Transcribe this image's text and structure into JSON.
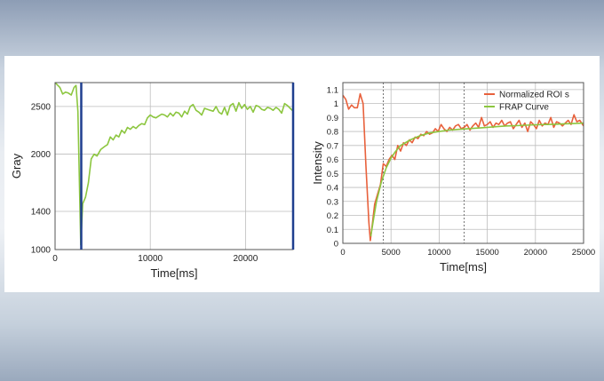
{
  "chart_data": [
    {
      "type": "line",
      "title": "",
      "xlabel": "Time[ms]",
      "ylabel": "Gray",
      "xlim": [
        0,
        25000
      ],
      "ylim": [
        1000,
        2750
      ],
      "xticks": [
        0,
        10000,
        20000
      ],
      "yticks": [
        1000,
        1400,
        2000,
        2500
      ],
      "grid": true,
      "series": [
        {
          "color": "#8cc63f",
          "x": [
            0,
            500,
            800,
            1100,
            1400,
            1700,
            2000,
            2200,
            2400,
            2550,
            2700,
            2900,
            3200,
            3500,
            3800,
            4100,
            4400,
            4800,
            5200,
            5500,
            5800,
            6100,
            6400,
            6700,
            7000,
            7300,
            7600,
            7900,
            8200,
            8500,
            8800,
            9100,
            9400,
            9700,
            10000,
            10300,
            10600,
            10900,
            11200,
            11500,
            11800,
            12100,
            12400,
            12700,
            13000,
            13300,
            13600,
            13900,
            14200,
            14500,
            14800,
            15100,
            15400,
            15700,
            16000,
            16300,
            16600,
            16900,
            17200,
            17500,
            17800,
            18100,
            18400,
            18700,
            19000,
            19300,
            19600,
            19900,
            20200,
            20500,
            20800,
            21100,
            21400,
            21700,
            22000,
            22300,
            22600,
            22900,
            23200,
            23500,
            23800,
            24100,
            24400,
            24700,
            25000
          ],
          "values": [
            2750,
            2700,
            2630,
            2650,
            2640,
            2620,
            2700,
            2720,
            2450,
            1750,
            1050,
            1480,
            1550,
            1700,
            1950,
            2000,
            1980,
            2050,
            2080,
            2100,
            2180,
            2150,
            2200,
            2180,
            2250,
            2220,
            2280,
            2260,
            2290,
            2270,
            2300,
            2320,
            2310,
            2380,
            2410,
            2390,
            2380,
            2400,
            2420,
            2410,
            2390,
            2430,
            2400,
            2440,
            2430,
            2390,
            2450,
            2420,
            2500,
            2520,
            2460,
            2440,
            2410,
            2480,
            2470,
            2460,
            2450,
            2500,
            2440,
            2420,
            2490,
            2410,
            2510,
            2530,
            2450,
            2540,
            2480,
            2520,
            2470,
            2500,
            2440,
            2510,
            2500,
            2470,
            2460,
            2490,
            2480,
            2460,
            2490,
            2470,
            2430,
            2530,
            2510,
            2480,
            2450
          ]
        }
      ]
    },
    {
      "type": "line",
      "title": "",
      "xlabel": "Time[ms]",
      "ylabel": "Intensity",
      "xlim": [
        0,
        25000
      ],
      "ylim": [
        0,
        1.15
      ],
      "xticks": [
        0,
        5000,
        10000,
        15000,
        20000,
        25000
      ],
      "yticks": [
        0,
        0.1,
        0.2,
        0.3,
        0.4,
        0.5,
        0.6,
        0.7,
        0.8,
        0.9,
        1,
        1.1
      ],
      "ytick_labels": [
        "0",
        "0.1",
        "0.2",
        "0.3",
        "0.4",
        "0.5",
        "0.6",
        "0.7",
        "0.8",
        "0.9",
        "1",
        "1.1"
      ],
      "grid": true,
      "reference_lines_x": [
        4200,
        12600
      ],
      "legend": "top-right",
      "series": [
        {
          "name": "Normalized ROI s",
          "color": "#e8613c",
          "x": [
            0,
            300,
            600,
            900,
            1200,
            1500,
            1800,
            2100,
            2400,
            2700,
            2850,
            3000,
            3300,
            3600,
            3900,
            4200,
            4500,
            4800,
            5100,
            5400,
            5700,
            6000,
            6300,
            6600,
            6900,
            7200,
            7500,
            7800,
            8100,
            8400,
            8700,
            9000,
            9300,
            9600,
            9900,
            10200,
            10500,
            10800,
            11100,
            11400,
            11700,
            12000,
            12300,
            12600,
            12900,
            13200,
            13500,
            13800,
            14100,
            14400,
            14700,
            15000,
            15300,
            15600,
            15900,
            16200,
            16500,
            16800,
            17100,
            17400,
            17700,
            18000,
            18300,
            18600,
            18900,
            19200,
            19500,
            19800,
            20100,
            20400,
            20700,
            21000,
            21300,
            21600,
            21900,
            22200,
            22500,
            22800,
            23100,
            23400,
            23700,
            24000,
            24300,
            24600,
            25000
          ],
          "values": [
            1.06,
            1.03,
            0.96,
            0.99,
            0.97,
            0.97,
            1.07,
            1.0,
            0.55,
            0.15,
            0.02,
            0.1,
            0.28,
            0.35,
            0.42,
            0.57,
            0.55,
            0.6,
            0.63,
            0.6,
            0.7,
            0.66,
            0.72,
            0.7,
            0.74,
            0.72,
            0.76,
            0.75,
            0.78,
            0.77,
            0.8,
            0.78,
            0.79,
            0.82,
            0.8,
            0.85,
            0.82,
            0.8,
            0.83,
            0.81,
            0.84,
            0.85,
            0.82,
            0.83,
            0.85,
            0.81,
            0.84,
            0.86,
            0.83,
            0.9,
            0.84,
            0.85,
            0.87,
            0.83,
            0.86,
            0.85,
            0.88,
            0.84,
            0.86,
            0.87,
            0.82,
            0.85,
            0.88,
            0.83,
            0.86,
            0.8,
            0.87,
            0.85,
            0.82,
            0.88,
            0.84,
            0.86,
            0.85,
            0.9,
            0.83,
            0.87,
            0.86,
            0.84,
            0.86,
            0.88,
            0.85,
            0.92,
            0.87,
            0.88,
            0.84
          ]
        },
        {
          "name": "FRAP Curve",
          "color": "#8cc63f",
          "x": [
            2900,
            3200,
            3500,
            4000,
            4500,
            5000,
            5500,
            6000,
            7000,
            8000,
            9000,
            10000,
            11000,
            12000,
            13000,
            14000,
            15000,
            16000,
            17000,
            18000,
            19000,
            20000,
            21000,
            22000,
            23000,
            24000,
            25000
          ],
          "values": [
            0.05,
            0.18,
            0.3,
            0.44,
            0.54,
            0.61,
            0.66,
            0.7,
            0.74,
            0.77,
            0.79,
            0.8,
            0.81,
            0.815,
            0.82,
            0.825,
            0.83,
            0.835,
            0.84,
            0.842,
            0.845,
            0.848,
            0.85,
            0.852,
            0.855,
            0.857,
            0.86
          ]
        }
      ]
    }
  ]
}
